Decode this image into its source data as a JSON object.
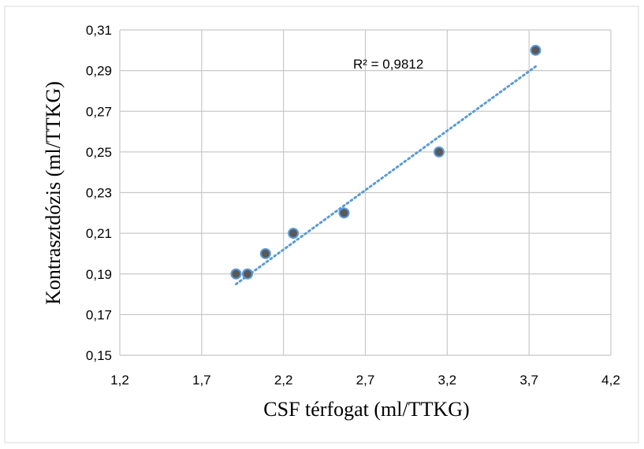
{
  "chart_data": {
    "type": "scatter",
    "title": "",
    "xlabel": "CSF térfogat (ml/TTKG)",
    "ylabel": "Kontrasztdózis (ml/TTKG)",
    "xlim": [
      1.2,
      4.2
    ],
    "ylim": [
      0.15,
      0.31
    ],
    "x_ticks": [
      "1,2",
      "1,7",
      "2,2",
      "2,7",
      "3,2",
      "3,7",
      "4,2"
    ],
    "y_ticks": [
      "0,15",
      "0,17",
      "0,19",
      "0,21",
      "0,23",
      "0,25",
      "0,27",
      "0,29",
      "0,31"
    ],
    "grid": true,
    "legend": "none",
    "series": [
      {
        "x": [
          1.91,
          1.98,
          2.09,
          2.26,
          2.57,
          3.15,
          3.74
        ],
        "y": [
          0.19,
          0.19,
          0.2,
          0.21,
          0.22,
          0.25,
          0.3
        ]
      }
    ],
    "trendline": {
      "type": "linear",
      "x_range": [
        1.91,
        3.74
      ],
      "y_range": [
        0.185,
        0.292
      ],
      "label": "R² = 0,9812"
    },
    "colors": {
      "marker_fill": "#595959",
      "marker_stroke": "#5B9BD5",
      "trendline": "#5B9BD5",
      "grid": "#c8c8c8",
      "frame": "#d9d9d9"
    }
  }
}
